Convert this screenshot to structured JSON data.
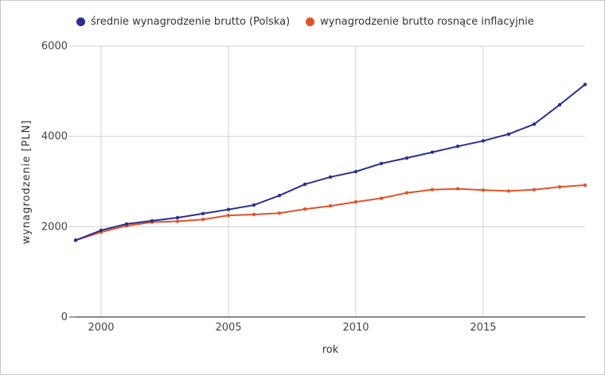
{
  "chart_data": {
    "type": "line",
    "title": "",
    "xlabel": "rok",
    "ylabel": "wynagrodzenie [PLN]",
    "ylim": [
      0,
      6000
    ],
    "xlim": [
      1999,
      2019
    ],
    "y_ticks": [
      "0",
      "2000",
      "4000",
      "6000"
    ],
    "x_ticks": [
      "2000",
      "2005",
      "2010",
      "2015"
    ],
    "grid": true,
    "legend_position": "top",
    "x": [
      1999,
      2000,
      2001,
      2002,
      2003,
      2004,
      2005,
      2006,
      2007,
      2008,
      2009,
      2010,
      2011,
      2012,
      2013,
      2014,
      2015,
      2016,
      2017,
      2018,
      2019
    ],
    "series": [
      {
        "name": "średnie wynagrodzenie brutto (Polska)",
        "color": "#2b2f8f",
        "values": [
          1700,
          1920,
          2060,
          2130,
          2200,
          2290,
          2380,
          2480,
          2690,
          2940,
          3100,
          3220,
          3400,
          3520,
          3650,
          3780,
          3900,
          4050,
          4270,
          4700,
          5150
        ]
      },
      {
        "name": "wynagrodzenie brutto rosnące inflacyjnie",
        "color": "#e0532a",
        "values": [
          1700,
          1880,
          2020,
          2100,
          2120,
          2160,
          2250,
          2270,
          2300,
          2390,
          2460,
          2550,
          2630,
          2750,
          2820,
          2840,
          2810,
          2790,
          2820,
          2880,
          2920
        ]
      }
    ]
  },
  "legend": {
    "items": [
      {
        "label": "średnie wynagrodzenie brutto (Polska)",
        "color": "#2b2f8f"
      },
      {
        "label": "wynagrodzenie brutto rosnące inflacyjnie",
        "color": "#e0532a"
      }
    ]
  }
}
